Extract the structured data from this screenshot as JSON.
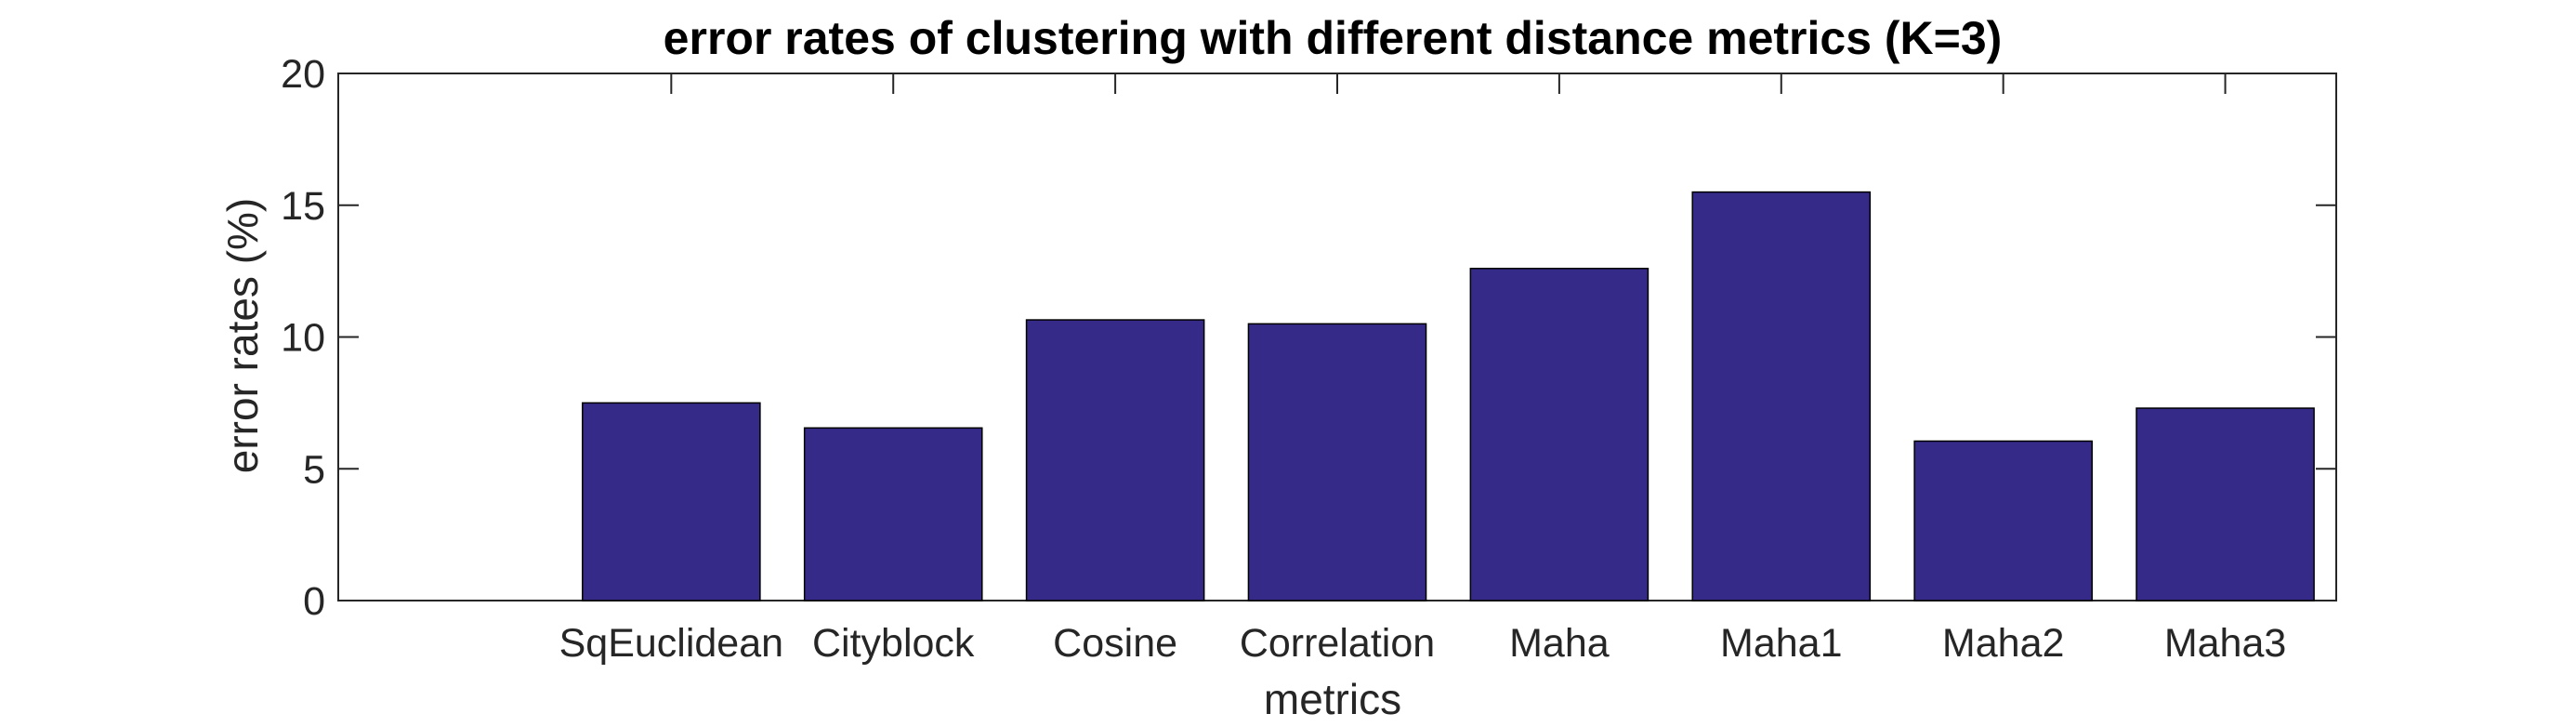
{
  "chart_data": {
    "type": "bar",
    "title": "error rates of clustering with different distance metrics (K=3)",
    "xlabel": "metrics",
    "ylabel": "error rates (%)",
    "categories": [
      "SqEuclidean",
      "Cityblock",
      "Cosine",
      "Correlation",
      "Maha",
      "Maha1",
      "Maha2",
      "Maha3"
    ],
    "values": [
      7.5,
      6.55,
      10.65,
      10.5,
      12.6,
      15.5,
      6.05,
      7.3
    ],
    "ylim": [
      0,
      20
    ],
    "yticks": [
      0,
      5,
      10,
      15,
      20
    ],
    "grid": false,
    "bar_color": "#352a87",
    "bar_edge_color": "#000000",
    "axis_color": "#262626"
  }
}
